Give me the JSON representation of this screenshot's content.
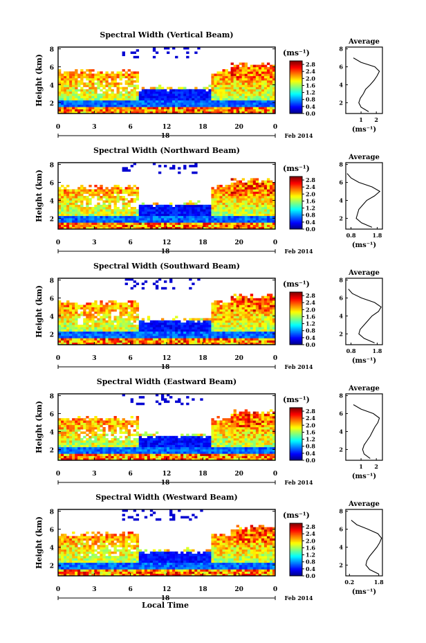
{
  "figure": {
    "xaxis_title": "Local Time"
  },
  "chart_data": [
    {
      "type": "heatmap",
      "title": "Spectral Width (Vertical Beam)",
      "ylabel": "Height (km)",
      "yticks": [
        "2",
        "4",
        "6",
        "8"
      ],
      "ylim": [
        0.8,
        8.2
      ],
      "xticks": [
        "0",
        "3",
        "6",
        "12",
        "18",
        "20",
        "0"
      ],
      "xlim": [
        0,
        24
      ],
      "date_label": "18",
      "month_label": "Feb 2014",
      "colorbar": {
        "unit_label": "(ms⁻¹)",
        "ticks": [
          "2.8",
          "2.4",
          "2.0",
          "1.6",
          "1.2",
          "0.8",
          "0.4",
          "0.0"
        ],
        "range": [
          0.0,
          3.0
        ]
      },
      "profile": {
        "title": "Average",
        "yticks": [
          "2",
          "4",
          "6",
          "8"
        ],
        "xticks": [
          "1",
          "2"
        ],
        "xlim": [
          0.0,
          2.4
        ],
        "xlabel": "(ms⁻¹)",
        "heights": [
          1.0,
          1.5,
          2.0,
          2.5,
          3.0,
          3.5,
          4.0,
          4.5,
          5.0,
          5.5,
          6.0,
          6.5,
          7.0
        ],
        "values": [
          1.5,
          1.0,
          0.85,
          0.95,
          1.15,
          1.3,
          1.6,
          1.85,
          2.05,
          2.2,
          1.9,
          1.0,
          0.5
        ]
      }
    },
    {
      "type": "heatmap",
      "title": "Spectral Width (Northward Beam)",
      "ylabel": "Height (km)",
      "yticks": [
        "2",
        "4",
        "6",
        "8"
      ],
      "ylim": [
        0.8,
        8.2
      ],
      "xticks": [
        "0",
        "3",
        "6",
        "12",
        "18",
        "20",
        "0"
      ],
      "xlim": [
        0,
        24
      ],
      "date_label": "18",
      "month_label": "Feb 2014",
      "colorbar": {
        "unit_label": "(ms⁻¹)",
        "ticks": [
          "2.8",
          "2.4",
          "2.0",
          "1.6",
          "1.2",
          "0.8",
          "0.4",
          "0.0"
        ],
        "range": [
          0.0,
          3.0
        ]
      },
      "profile": {
        "title": "Average",
        "yticks": [
          "2",
          "4",
          "6",
          "8"
        ],
        "xticks": [
          "0.8",
          "1.8"
        ],
        "xlim": [
          0.6,
          2.0
        ],
        "xlabel": "(ms⁻¹)",
        "heights": [
          1.0,
          1.5,
          2.0,
          2.5,
          3.0,
          3.5,
          4.0,
          4.5,
          5.0,
          5.5,
          6.0,
          6.5,
          7.0
        ],
        "values": [
          1.6,
          1.2,
          1.0,
          1.05,
          1.1,
          1.25,
          1.4,
          1.7,
          1.9,
          1.6,
          1.1,
          0.8,
          0.65
        ]
      }
    },
    {
      "type": "heatmap",
      "title": "Spectral Width (Southward Beam)",
      "ylabel": "Height (km)",
      "yticks": [
        "2",
        "4",
        "6",
        "8"
      ],
      "ylim": [
        0.8,
        8.2
      ],
      "xticks": [
        "0",
        "3",
        "6",
        "12",
        "18",
        "20",
        "0"
      ],
      "xlim": [
        0,
        24
      ],
      "date_label": "18",
      "month_label": "Feb 2014",
      "colorbar": {
        "unit_label": "(ms⁻¹)",
        "ticks": [
          "2.8",
          "2.4",
          "2.0",
          "1.6",
          "1.2",
          "0.8",
          "0.4",
          "0.0"
        ],
        "range": [
          0.0,
          3.0
        ]
      },
      "profile": {
        "title": "Average",
        "yticks": [
          "2",
          "4",
          "6",
          "8"
        ],
        "xticks": [
          "0.8",
          "1.8"
        ],
        "xlim": [
          0.6,
          2.0
        ],
        "xlabel": "(ms⁻¹)",
        "heights": [
          1.0,
          1.5,
          2.0,
          2.5,
          3.0,
          3.5,
          4.0,
          4.5,
          5.0,
          5.5,
          6.0,
          6.5,
          7.0
        ],
        "values": [
          1.7,
          1.3,
          1.1,
          1.15,
          1.3,
          1.45,
          1.6,
          1.85,
          1.95,
          1.7,
          1.2,
          0.85,
          0.7
        ]
      }
    },
    {
      "type": "heatmap",
      "title": "Spectral Width (Eastward Beam)",
      "ylabel": "Height (km)",
      "yticks": [
        "2",
        "4",
        "6",
        "8"
      ],
      "ylim": [
        0.8,
        8.2
      ],
      "xticks": [
        "0",
        "3",
        "6",
        "12",
        "18",
        "20",
        "0"
      ],
      "xlim": [
        0,
        24
      ],
      "date_label": "18",
      "month_label": "Feb 2014",
      "colorbar": {
        "unit_label": "(ms⁻¹)",
        "ticks": [
          "2.8",
          "2.4",
          "2.0",
          "1.6",
          "1.2",
          "0.8",
          "0.4",
          "0.0"
        ],
        "range": [
          0.0,
          3.0
        ]
      },
      "profile": {
        "title": "Average",
        "yticks": [
          "2",
          "4",
          "6",
          "8"
        ],
        "xticks": [
          "1",
          "2"
        ],
        "xlim": [
          0.0,
          2.4
        ],
        "xlabel": "(ms⁻¹)",
        "heights": [
          1.0,
          1.5,
          2.0,
          2.5,
          3.0,
          3.5,
          4.0,
          4.5,
          5.0,
          5.5,
          6.0,
          6.5,
          7.0
        ],
        "values": [
          1.6,
          1.2,
          1.1,
          1.2,
          1.4,
          1.6,
          1.75,
          1.9,
          2.1,
          2.2,
          1.8,
          1.0,
          0.5
        ]
      }
    },
    {
      "type": "heatmap",
      "title": "Spectral Width (Westward Beam)",
      "ylabel": "Height (km)",
      "yticks": [
        "2",
        "4",
        "6",
        "8"
      ],
      "ylim": [
        0.8,
        8.2
      ],
      "xticks": [
        "0",
        "3",
        "6",
        "12",
        "18",
        "20",
        "0"
      ],
      "xlim": [
        0,
        24
      ],
      "date_label": "18",
      "month_label": "Feb 2014",
      "colorbar": {
        "unit_label": "(ms⁻¹)",
        "ticks": [
          "2.8",
          "2.4",
          "2.0",
          "1.6",
          "1.2",
          "0.8",
          "0.4",
          "0.0"
        ],
        "range": [
          0.0,
          3.0
        ]
      },
      "profile": {
        "title": "Average",
        "yticks": [
          "2",
          "4",
          "6",
          "8"
        ],
        "xticks": [
          "0.2",
          "1.8"
        ],
        "xlim": [
          0.0,
          2.0
        ],
        "xlabel": "(ms⁻¹)",
        "heights": [
          1.0,
          1.5,
          2.0,
          2.5,
          3.0,
          3.5,
          4.0,
          4.5,
          5.0,
          5.5,
          6.0,
          6.5,
          7.0
        ],
        "values": [
          1.8,
          1.3,
          1.1,
          1.15,
          1.3,
          1.5,
          1.7,
          1.85,
          1.95,
          1.75,
          1.2,
          0.6,
          0.3
        ]
      }
    }
  ]
}
